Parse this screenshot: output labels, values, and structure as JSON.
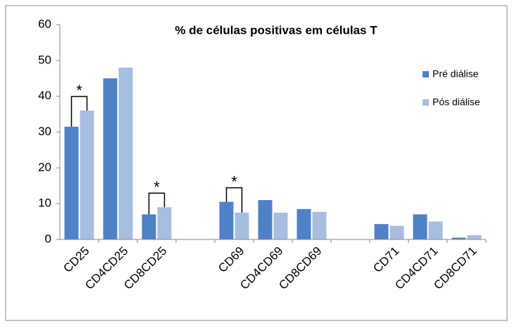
{
  "chart_data": {
    "type": "bar",
    "title": "% de células positivas em células T",
    "categories": [
      "CD25",
      "CD4CD25",
      "CD8CD25",
      null,
      "CD69",
      "CD4CD69",
      "CD8CD69",
      null,
      "CD71",
      "CD4CD71",
      "CD8CD71"
    ],
    "series": [
      {
        "name": "Pré diálise",
        "color": "#4f81c7",
        "values": [
          31.5,
          45,
          7,
          null,
          10.5,
          11,
          8.5,
          null,
          4.3,
          7,
          0.5
        ]
      },
      {
        "name": "Pós diálise",
        "color": "#a8bde2",
        "values": [
          36,
          48,
          9,
          null,
          7.5,
          7.5,
          7.7,
          null,
          3.8,
          5,
          1.2
        ]
      }
    ],
    "annotations": [
      "*",
      null,
      "*",
      null,
      "*",
      null,
      null,
      null,
      null,
      null,
      null
    ],
    "ylim": [
      0,
      60
    ],
    "yticks": [
      0,
      10,
      20,
      30,
      40,
      50,
      60
    ],
    "grid": false,
    "legend": "right"
  }
}
